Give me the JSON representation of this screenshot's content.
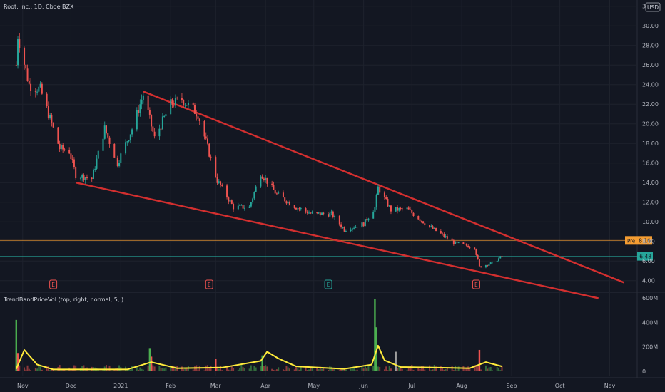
{
  "header": {
    "symbol_label": "Root, Inc., 1D, Cboe BZX"
  },
  "chart_data": {
    "type": "candlestick",
    "title": "Root, Inc., 1D, Cboe BZX",
    "currency": "USD",
    "y_axis": {
      "ticks": [
        "4.00",
        "6.00",
        "8.00",
        "10.00",
        "12.00",
        "14.00",
        "16.00",
        "18.00",
        "20.00",
        "22.00",
        "24.00",
        "26.00",
        "28.00",
        "30.00",
        "32.00"
      ],
      "ylim": [
        2.0,
        33.0
      ]
    },
    "x_axis": {
      "ticks": [
        "Nov",
        "Dec",
        "2021",
        "Feb",
        "Mar",
        "Apr",
        "May",
        "Jun",
        "Jul",
        "Aug",
        "Sep",
        "Oct",
        "Nov"
      ]
    },
    "price_lines": [
      {
        "label": "Pre",
        "value": "8.10",
        "color": "#f59d32"
      },
      {
        "label": "",
        "value": "6.48",
        "color": "#26a69a"
      }
    ],
    "trendlines": [
      {
        "name": "upper",
        "from": {
          "date": "2021-01-15",
          "price": 23.3
        },
        "to": {
          "date": "2021-11-10",
          "price": 3.8
        },
        "color": "#d32f2f"
      },
      {
        "name": "lower",
        "from": {
          "date": "2020-12-04",
          "price": 14.0
        },
        "to": {
          "date": "2021-10-25",
          "price": 2.2
        },
        "color": "#d32f2f"
      }
    ],
    "earnings_markers": [
      {
        "label": "E",
        "date": "2020-11-20",
        "color": "#f05350"
      },
      {
        "label": "E",
        "date": "2021-02-25",
        "color": "#f05350"
      },
      {
        "label": "E",
        "date": "2021-05-10",
        "color": "#26a69a"
      },
      {
        "label": "E",
        "date": "2021-08-10",
        "color": "#f05350"
      }
    ],
    "anchors": [
      {
        "date": "2020-10-28",
        "price": 26.0
      },
      {
        "date": "2020-10-29",
        "price": 29.0
      },
      {
        "date": "2020-11-05",
        "price": 24.0
      },
      {
        "date": "2020-11-12",
        "price": 23.5
      },
      {
        "date": "2020-11-24",
        "price": 17.5
      },
      {
        "date": "2020-11-30",
        "price": 17.2
      },
      {
        "date": "2020-12-04",
        "price": 14.8
      },
      {
        "date": "2020-12-14",
        "price": 14.4
      },
      {
        "date": "2020-12-22",
        "price": 19.5
      },
      {
        "date": "2020-12-30",
        "price": 16.0
      },
      {
        "date": "2021-01-08",
        "price": 19.5
      },
      {
        "date": "2021-01-15",
        "price": 23.0
      },
      {
        "date": "2021-01-22",
        "price": 18.5
      },
      {
        "date": "2021-02-01",
        "price": 22.0
      },
      {
        "date": "2021-02-08",
        "price": 22.5
      },
      {
        "date": "2021-02-18",
        "price": 21.0
      },
      {
        "date": "2021-02-25",
        "price": 17.0
      },
      {
        "date": "2021-03-02",
        "price": 14.2
      },
      {
        "date": "2021-03-12",
        "price": 11.5
      },
      {
        "date": "2021-03-22",
        "price": 11.5
      },
      {
        "date": "2021-03-29",
        "price": 15.0
      },
      {
        "date": "2021-04-08",
        "price": 12.8
      },
      {
        "date": "2021-04-20",
        "price": 11.5
      },
      {
        "date": "2021-04-30",
        "price": 10.8
      },
      {
        "date": "2021-05-12",
        "price": 10.8
      },
      {
        "date": "2021-05-20",
        "price": 9.2
      },
      {
        "date": "2021-06-01",
        "price": 9.8
      },
      {
        "date": "2021-06-08",
        "price": 11.5
      },
      {
        "date": "2021-06-10",
        "price": 13.5
      },
      {
        "date": "2021-06-18",
        "price": 11.2
      },
      {
        "date": "2021-06-28",
        "price": 11.3
      },
      {
        "date": "2021-07-12",
        "price": 9.5
      },
      {
        "date": "2021-07-28",
        "price": 7.8
      },
      {
        "date": "2021-08-09",
        "price": 7.4
      },
      {
        "date": "2021-08-12",
        "price": 5.4
      },
      {
        "date": "2021-08-20",
        "price": 5.8
      },
      {
        "date": "2021-08-26",
        "price": 6.48
      }
    ],
    "indicator": {
      "name": "TrendBandPriceVol (top, right, normal, 5, )",
      "y_ticks": [
        "0",
        "200M",
        "400M",
        "600M"
      ],
      "ylim": [
        0,
        620
      ],
      "spikes_millions": [
        {
          "date": "2020-10-28",
          "value": 420,
          "color": "#4caf50"
        },
        {
          "date": "2020-10-29",
          "value": 150,
          "color": "#ef5350"
        },
        {
          "date": "2021-01-19",
          "value": 190,
          "color": "#4caf50"
        },
        {
          "date": "2021-01-20",
          "value": 120,
          "color": "#ef5350"
        },
        {
          "date": "2021-03-01",
          "value": 100,
          "color": "#ef5350"
        },
        {
          "date": "2021-03-30",
          "value": 130,
          "color": "#4caf50"
        },
        {
          "date": "2021-06-08",
          "value": 590,
          "color": "#4caf50"
        },
        {
          "date": "2021-06-09",
          "value": 360,
          "color": "#4caf50"
        },
        {
          "date": "2021-06-21",
          "value": 160,
          "color": "#9e9e9e"
        },
        {
          "date": "2021-08-12",
          "value": 175,
          "color": "#ef5350"
        }
      ],
      "band_anchors": [
        {
          "date": "2020-10-28",
          "value": 20
        },
        {
          "date": "2020-11-02",
          "value": 175
        },
        {
          "date": "2020-11-10",
          "value": 55
        },
        {
          "date": "2020-11-20",
          "value": 15
        },
        {
          "date": "2021-01-05",
          "value": 15
        },
        {
          "date": "2021-01-20",
          "value": 75
        },
        {
          "date": "2021-02-05",
          "value": 25
        },
        {
          "date": "2021-03-05",
          "value": 30
        },
        {
          "date": "2021-03-29",
          "value": 85
        },
        {
          "date": "2021-04-02",
          "value": 160
        },
        {
          "date": "2021-04-09",
          "value": 105
        },
        {
          "date": "2021-04-20",
          "value": 40
        },
        {
          "date": "2021-05-20",
          "value": 20
        },
        {
          "date": "2021-06-06",
          "value": 55
        },
        {
          "date": "2021-06-10",
          "value": 210
        },
        {
          "date": "2021-06-14",
          "value": 90
        },
        {
          "date": "2021-06-24",
          "value": 35
        },
        {
          "date": "2021-08-06",
          "value": 25
        },
        {
          "date": "2021-08-16",
          "value": 75
        },
        {
          "date": "2021-08-26",
          "value": 40
        }
      ]
    }
  }
}
